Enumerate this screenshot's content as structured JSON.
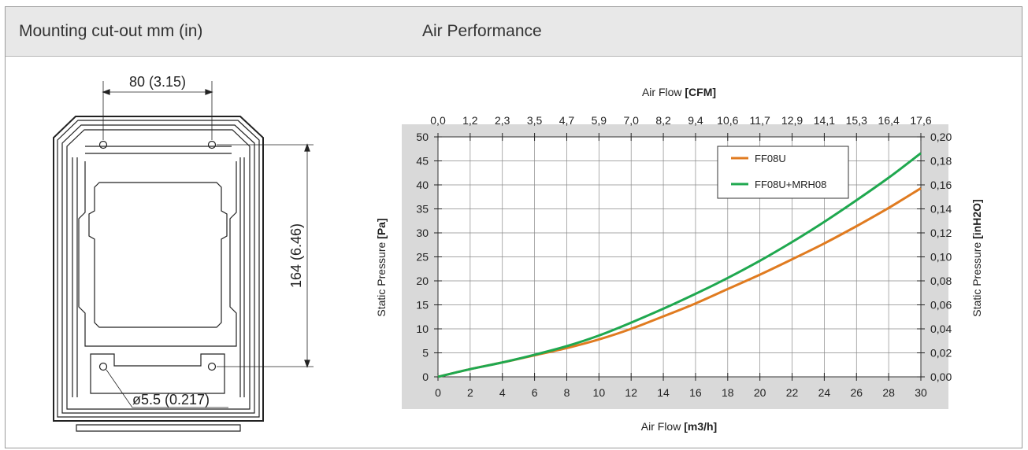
{
  "headers": {
    "left": "Mounting cut-out  mm (in)",
    "right": "Air Performance"
  },
  "drawing": {
    "dim_width": "80 (3.15)",
    "dim_height": "164 (6.46)",
    "dim_hole": "ø5.5 (0.217)"
  },
  "chart_data": {
    "type": "line",
    "x": [
      0,
      2,
      4,
      6,
      8,
      10,
      12,
      14,
      16,
      18,
      20,
      22,
      24,
      26,
      28,
      30
    ],
    "series": [
      {
        "name": "FF08U",
        "color": "#e07b20",
        "values": [
          0,
          1.6,
          3.0,
          4.5,
          6.0,
          7.8,
          10.0,
          12.6,
          15.3,
          18.3,
          21.3,
          24.5,
          27.8,
          31.4,
          35.2,
          39.3
        ]
      },
      {
        "name": "FF08U+MRH08",
        "color": "#1fa84f",
        "values": [
          0,
          1.6,
          3.0,
          4.6,
          6.4,
          8.6,
          11.3,
          14.2,
          17.3,
          20.6,
          24.2,
          28.1,
          32.3,
          36.8,
          41.5,
          46.6
        ]
      }
    ],
    "xlim": [
      0,
      30
    ],
    "ylim": [
      0,
      50
    ],
    "x_ticks": [
      "0",
      "2",
      "4",
      "6",
      "8",
      "10",
      "12",
      "14",
      "16",
      "18",
      "20",
      "22",
      "24",
      "26",
      "28",
      "30"
    ],
    "y_ticks": [
      "0",
      "5",
      "10",
      "15",
      "20",
      "25",
      "30",
      "35",
      "40",
      "45",
      "50"
    ],
    "top_ticks": [
      "0,0",
      "1,2",
      "2,3",
      "3,5",
      "4,7",
      "5,9",
      "7,0",
      "8,2",
      "9,4",
      "10,6",
      "11,7",
      "12,9",
      "14,1",
      "15,3",
      "16,4",
      "17,6"
    ],
    "right_ticks": [
      "0,00",
      "0,02",
      "0,04",
      "0,06",
      "0,08",
      "0,10",
      "0,12",
      "0,14",
      "0,16",
      "0,18",
      "0,20"
    ],
    "xlabel": "Air Flow",
    "xlabel_unit": "[m3/h]",
    "x2label": "Air Flow",
    "x2label_unit": "[CFM]",
    "ylabel": "Static Pressure",
    "ylabel_unit": "[Pa]",
    "y2label": "Static Pressure",
    "y2label_unit": "[inH2O]",
    "grid": true,
    "legend_position": "top-right"
  }
}
